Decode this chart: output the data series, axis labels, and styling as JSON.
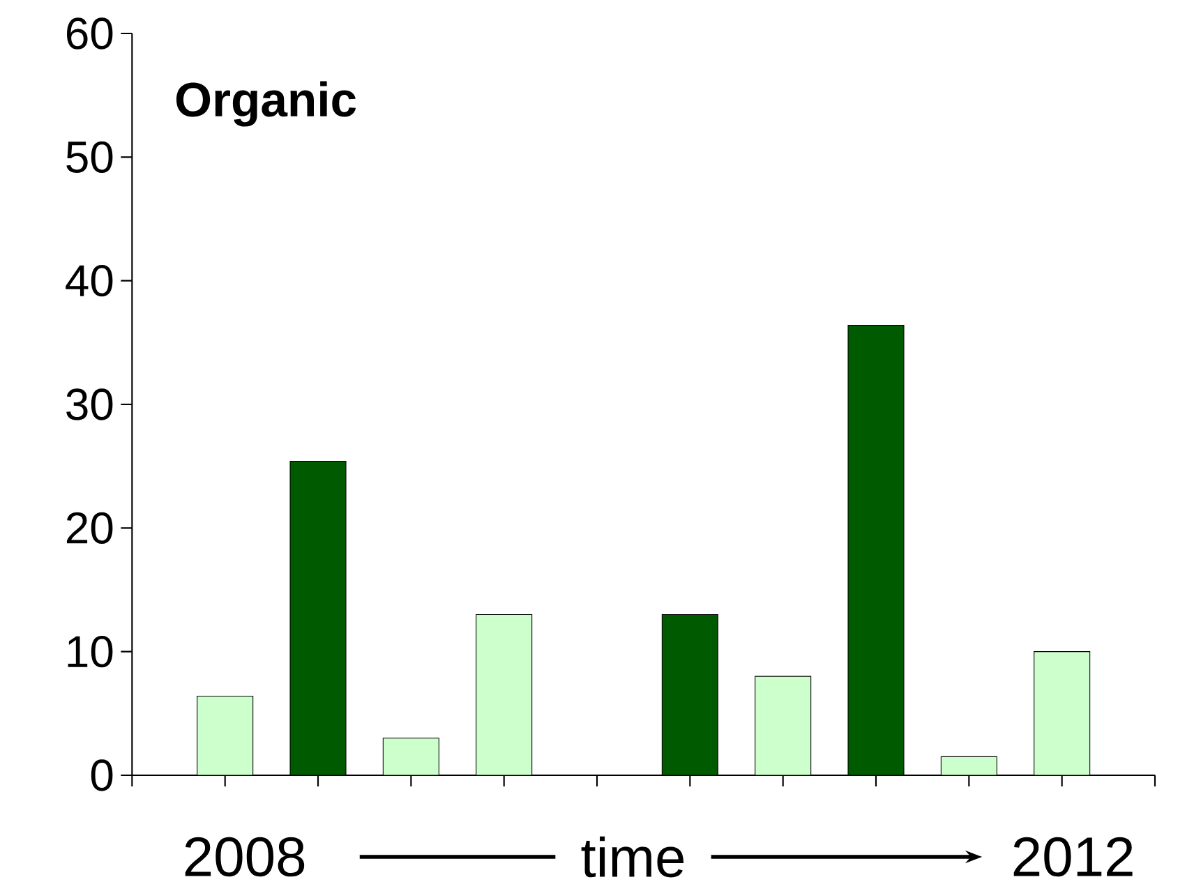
{
  "chart_data": {
    "type": "bar",
    "title": "Organic",
    "xlabel": "time",
    "annotations": [
      "2008",
      "2012"
    ],
    "categories": [
      null,
      null,
      null,
      null,
      null,
      null,
      null,
      null,
      null,
      null
    ],
    "values": [
      6.4,
      25.4,
      3,
      13,
      null,
      13,
      8,
      36.4,
      1.5,
      10
    ],
    "colors": [
      "#ccffcc",
      "#005a00",
      "#ccffcc",
      "#ccffcc",
      "#ccffcc",
      "#005a00",
      "#ccffcc",
      "#005a00",
      "#ccffcc",
      "#ccffcc"
    ],
    "ylim": [
      0,
      60
    ],
    "yticks": [
      0,
      10,
      20,
      30,
      40,
      50,
      60
    ]
  }
}
